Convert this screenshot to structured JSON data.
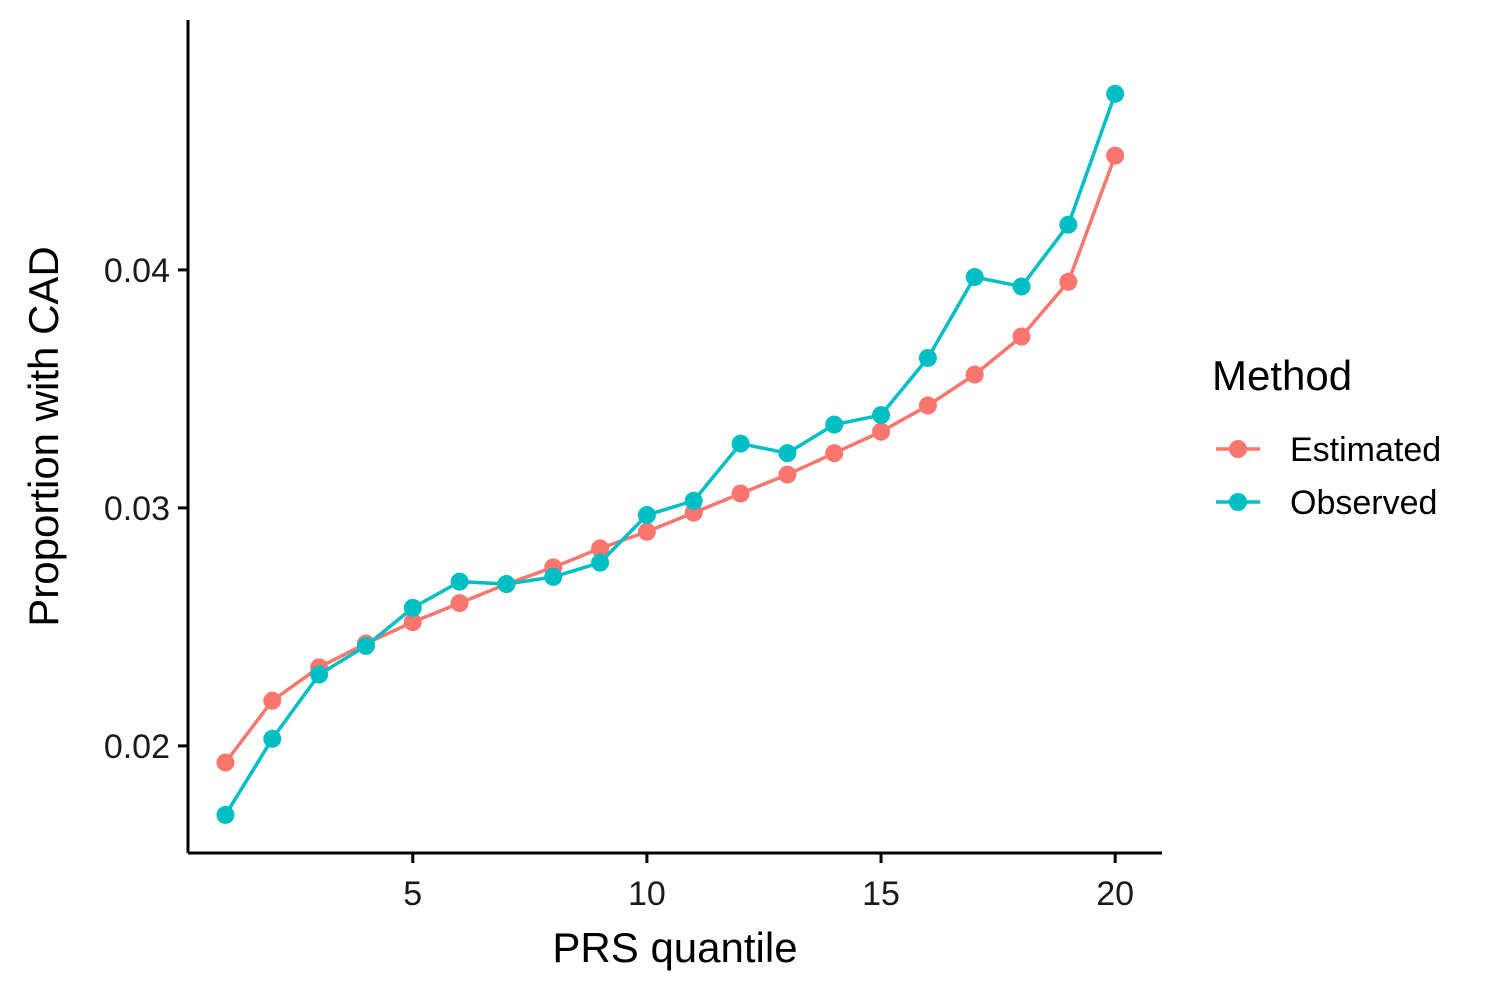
{
  "chart_data": {
    "type": "line",
    "title": "",
    "xlabel": "PRS quantile",
    "ylabel": "Proportion with CAD",
    "xlim": [
      0.2,
      21.0
    ],
    "ylim": [
      0.0155,
      0.0505
    ],
    "x_ticks": [
      5,
      10,
      15,
      20
    ],
    "x_tick_labels": [
      "5",
      "10",
      "15",
      "20"
    ],
    "y_ticks": [
      0.02,
      0.03,
      0.04
    ],
    "y_tick_labels": [
      "0.02",
      "0.03",
      "0.04"
    ],
    "grid": false,
    "legend": {
      "title": "Method",
      "placement": "right"
    },
    "x": [
      1,
      2,
      3,
      4,
      5,
      6,
      7,
      8,
      9,
      10,
      11,
      12,
      13,
      14,
      15,
      16,
      17,
      18,
      19,
      20
    ],
    "series": [
      {
        "name": "Estimated",
        "color": "#F8766D",
        "values": [
          0.0193,
          0.0219,
          0.0233,
          0.0243,
          0.0252,
          0.026,
          0.0268,
          0.0275,
          0.0283,
          0.029,
          0.0298,
          0.0306,
          0.0314,
          0.0323,
          0.0332,
          0.0343,
          0.0356,
          0.0372,
          0.0395,
          0.0448
        ]
      },
      {
        "name": "Observed",
        "color": "#00BFC4",
        "values": [
          0.0171,
          0.0203,
          0.023,
          0.0242,
          0.0258,
          0.0269,
          0.0268,
          0.0271,
          0.0277,
          0.0297,
          0.0303,
          0.0327,
          0.0323,
          0.0335,
          0.0339,
          0.0363,
          0.0397,
          0.0393,
          0.0419,
          0.0474
        ]
      }
    ]
  }
}
